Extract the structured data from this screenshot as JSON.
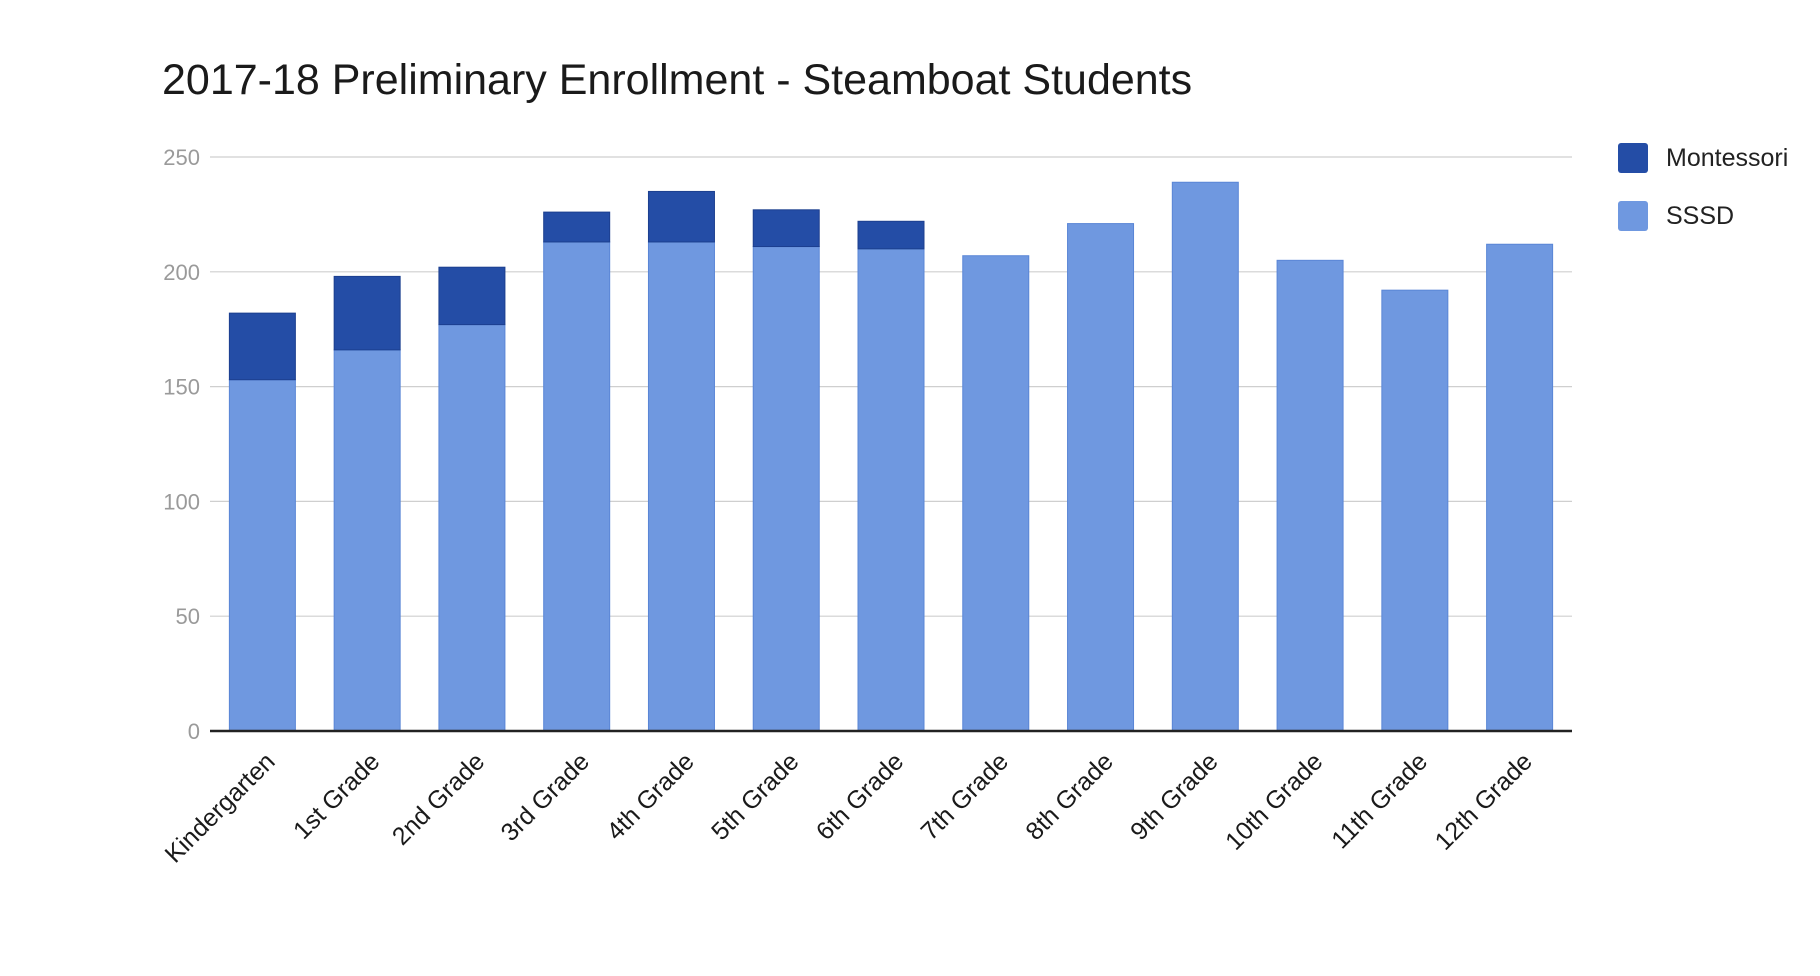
{
  "chart_data": {
    "type": "bar",
    "stacked": true,
    "title": "2017-18 Preliminary Enrollment - Steamboat Students",
    "xlabel": "",
    "ylabel": "",
    "ylim": [
      0,
      250
    ],
    "yticks": [
      "0",
      "50",
      "100",
      "150",
      "200",
      "250"
    ],
    "grid": true,
    "legend_position": "right",
    "categories": [
      "Kindergarten",
      "1st Grade",
      "2nd Grade",
      "3rd Grade",
      "4th Grade",
      "5th Grade",
      "6th Grade",
      "7th Grade",
      "8th Grade",
      "9th Grade",
      "10th Grade",
      "11th Grade",
      "12th Grade"
    ],
    "series": [
      {
        "name": "SSSD",
        "color": "#6f98e0",
        "values": [
          153,
          166,
          177,
          213,
          213,
          211,
          210,
          207,
          221,
          239,
          205,
          192,
          212
        ]
      },
      {
        "name": "Montessori",
        "color": "#244da6",
        "values": [
          29,
          32,
          25,
          13,
          22,
          16,
          12,
          0,
          0,
          0,
          0,
          0,
          0
        ]
      }
    ]
  }
}
